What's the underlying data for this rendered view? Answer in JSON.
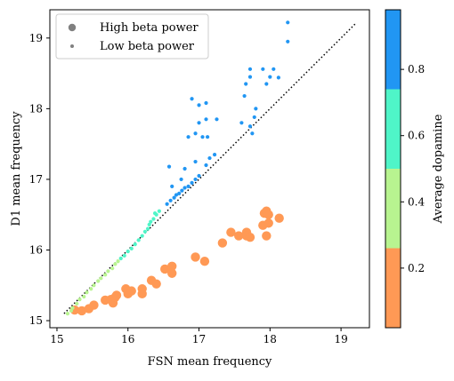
{
  "chart_data": {
    "type": "scatter",
    "xlabel": "FSN mean frequency",
    "ylabel": "D1 mean frequency",
    "xlim": [
      14.9,
      19.4
    ],
    "ylim": [
      14.9,
      19.4
    ],
    "xticks": [
      "15",
      "16",
      "17",
      "18",
      "19"
    ],
    "yticks": [
      "15",
      "16",
      "17",
      "18",
      "19"
    ],
    "grid": false,
    "legend": {
      "placement": "upper-left",
      "entries": [
        {
          "label": "High beta power",
          "marker": "large-dot",
          "color": "#808080"
        },
        {
          "label": "Low beta power",
          "marker": "small-dot",
          "color": "#808080"
        }
      ]
    },
    "reference_line": {
      "style": "dotted",
      "color": "#000000",
      "x": [
        15.1,
        19.2
      ],
      "y": [
        15.1,
        19.2
      ]
    },
    "colorbar": {
      "label": "Average dopamine",
      "range": [
        0.02,
        0.98
      ],
      "ticks": [
        "0.2",
        "0.4",
        "0.6",
        "0.8"
      ],
      "tick_values": [
        0.2,
        0.4,
        0.6,
        0.8
      ],
      "bins": [
        {
          "from": 0.02,
          "to": 0.26,
          "color": "#ff9955"
        },
        {
          "from": 0.26,
          "to": 0.5,
          "color": "#b8f490"
        },
        {
          "from": 0.5,
          "to": 0.74,
          "color": "#4ff5c8"
        },
        {
          "from": 0.74,
          "to": 0.98,
          "color": "#2196f3"
        }
      ]
    },
    "series": [
      {
        "name": "High beta power",
        "marker": "large",
        "color": "#ff9955",
        "points": [
          [
            15.25,
            15.15
          ],
          [
            15.35,
            15.14
          ],
          [
            15.45,
            15.17
          ],
          [
            15.52,
            15.22
          ],
          [
            15.68,
            15.29
          ],
          [
            15.76,
            15.3
          ],
          [
            15.79,
            15.25
          ],
          [
            15.82,
            15.33
          ],
          [
            15.84,
            15.36
          ],
          [
            15.97,
            15.45
          ],
          [
            16.0,
            15.38
          ],
          [
            16.05,
            15.42
          ],
          [
            16.2,
            15.45
          ],
          [
            16.2,
            15.38
          ],
          [
            16.33,
            15.57
          ],
          [
            16.4,
            15.52
          ],
          [
            16.52,
            15.73
          ],
          [
            16.62,
            15.77
          ],
          [
            16.62,
            15.67
          ],
          [
            16.95,
            15.9
          ],
          [
            17.08,
            15.84
          ],
          [
            17.33,
            16.1
          ],
          [
            17.45,
            16.25
          ],
          [
            17.56,
            16.2
          ],
          [
            17.67,
            16.25
          ],
          [
            17.67,
            16.2
          ],
          [
            17.72,
            16.18
          ],
          [
            17.9,
            16.35
          ],
          [
            17.92,
            16.52
          ],
          [
            17.95,
            16.55
          ],
          [
            17.98,
            16.5
          ],
          [
            17.98,
            16.38
          ],
          [
            17.95,
            16.2
          ],
          [
            18.13,
            16.45
          ]
        ]
      },
      {
        "name": "Low beta power",
        "marker": "small",
        "color": "#b8f490",
        "points": [
          [
            15.15,
            15.1
          ],
          [
            15.2,
            15.14
          ],
          [
            15.22,
            15.18
          ],
          [
            15.28,
            15.24
          ],
          [
            15.32,
            15.3
          ],
          [
            15.38,
            15.34
          ],
          [
            15.42,
            15.4
          ],
          [
            15.48,
            15.45
          ],
          [
            15.52,
            15.5
          ],
          [
            15.58,
            15.56
          ],
          [
            15.62,
            15.6
          ],
          [
            15.68,
            15.65
          ],
          [
            15.72,
            15.7
          ],
          [
            15.78,
            15.74
          ],
          [
            15.82,
            15.8
          ],
          [
            15.86,
            15.84
          ]
        ]
      },
      {
        "name": "Low beta power",
        "marker": "small",
        "color": "#4ff5c8",
        "points": [
          [
            15.9,
            15.88
          ],
          [
            15.95,
            15.92
          ],
          [
            16.0,
            15.98
          ],
          [
            16.05,
            16.02
          ],
          [
            16.1,
            16.08
          ],
          [
            16.15,
            16.14
          ],
          [
            16.2,
            16.2
          ],
          [
            16.24,
            16.26
          ],
          [
            16.28,
            16.3
          ],
          [
            16.3,
            16.36
          ],
          [
            16.32,
            16.4
          ],
          [
            16.36,
            16.44
          ],
          [
            16.4,
            16.5
          ],
          [
            16.44,
            16.55
          ],
          [
            16.38,
            16.52
          ]
        ]
      },
      {
        "name": "Low beta power",
        "marker": "small",
        "color": "#2196f3",
        "points": [
          [
            16.55,
            16.65
          ],
          [
            16.6,
            16.7
          ],
          [
            16.65,
            16.74
          ],
          [
            16.68,
            16.78
          ],
          [
            16.72,
            16.8
          ],
          [
            16.76,
            16.84
          ],
          [
            16.8,
            16.88
          ],
          [
            16.85,
            16.9
          ],
          [
            16.9,
            16.95
          ],
          [
            16.95,
            17.0
          ],
          [
            17.0,
            17.05
          ],
          [
            16.62,
            16.9
          ],
          [
            16.75,
            17.0
          ],
          [
            16.58,
            17.18
          ],
          [
            16.8,
            17.15
          ],
          [
            16.95,
            17.25
          ],
          [
            17.1,
            17.2
          ],
          [
            16.85,
            17.6
          ],
          [
            16.95,
            17.65
          ],
          [
            17.05,
            17.6
          ],
          [
            17.12,
            17.6
          ],
          [
            17.0,
            17.8
          ],
          [
            17.1,
            17.85
          ],
          [
            17.25,
            17.85
          ],
          [
            17.0,
            18.05
          ],
          [
            17.1,
            18.08
          ],
          [
            16.9,
            18.14
          ],
          [
            17.6,
            17.8
          ],
          [
            17.72,
            17.75
          ],
          [
            17.75,
            17.65
          ],
          [
            17.78,
            17.88
          ],
          [
            17.8,
            18.0
          ],
          [
            17.64,
            18.18
          ],
          [
            17.66,
            18.35
          ],
          [
            17.72,
            18.45
          ],
          [
            17.72,
            18.56
          ],
          [
            17.9,
            18.56
          ],
          [
            17.95,
            18.35
          ],
          [
            18.0,
            18.45
          ],
          [
            18.05,
            18.56
          ],
          [
            18.12,
            18.44
          ],
          [
            18.25,
            18.95
          ],
          [
            18.25,
            19.22
          ],
          [
            17.15,
            17.3
          ],
          [
            17.22,
            17.35
          ]
        ]
      }
    ]
  }
}
